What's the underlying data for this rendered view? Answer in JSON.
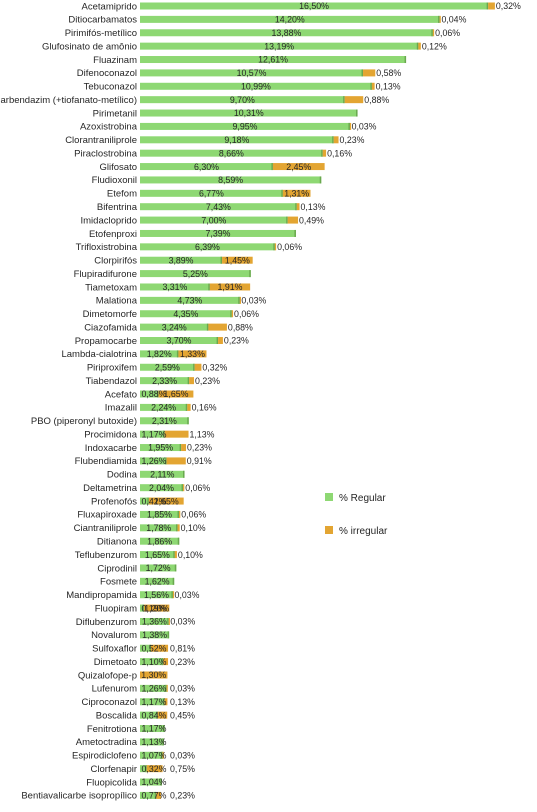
{
  "chart_data": {
    "type": "bar",
    "orientation": "horizontal",
    "stacked": true,
    "categories": [
      "Acetamiprido",
      "Ditiocarbamatos",
      "Pirimifós-metílico",
      "Glufosinato de amônio",
      "Fluazinam",
      "Difenoconazol",
      "Tebuconazol",
      "Carbendazim (+tiofanato-metílico)",
      "Pirimetanil",
      "Azoxistrobina",
      "Clorantraniliprole",
      "Piraclostrobina",
      "Glifosato",
      "Fludioxonil",
      "Etefom",
      "Bifentrina",
      "Imidacloprido",
      "Etofenproxi",
      "Trifloxistrobina",
      "Clorpirifós",
      "Flupiradifurone",
      "Tiametoxam",
      "Malationa",
      "Dimetomorfe",
      "Ciazofamida",
      "Propamocarbe",
      "Lambda-cialotrina",
      "Piriproxifem",
      "Tiabendazol",
      "Acefato",
      "Imazalil",
      "PBO (piperonyl butoxide)",
      "Procimidona",
      "Indoxacarbe",
      "Flubendiamida",
      "Dodina",
      "Deltametrina",
      "Profenofós",
      "Fluxapiroxade",
      "Ciantraniliprole",
      "Ditianona",
      "Teflubenzurom",
      "Ciprodinil",
      "Fosmete",
      "Mandipropamida",
      "Fluopiram",
      "Diflubenzurom",
      "Novalurom",
      "Sulfoxaflor",
      "Dimetoato",
      "Quizalofope-p",
      "Lufenurom",
      "Ciproconazol",
      "Boscalida",
      "Fenitrotiona",
      "Ametoctradina",
      "Espirodiclofeno",
      "Clorfenapir",
      "Fluopicolida",
      "Bentiavalicarbe isopropílico"
    ],
    "series": [
      {
        "name": "% Regular",
        "color": "#8ed873",
        "values": [
          16.5,
          14.2,
          13.88,
          13.19,
          12.61,
          10.57,
          10.99,
          9.7,
          10.31,
          9.95,
          9.18,
          8.66,
          6.3,
          8.59,
          6.77,
          7.43,
          7.0,
          7.39,
          6.39,
          3.89,
          5.25,
          3.31,
          4.73,
          4.35,
          3.24,
          3.7,
          1.82,
          2.59,
          2.33,
          0.88,
          2.24,
          2.31,
          1.17,
          1.95,
          1.26,
          2.11,
          2.04,
          0.42,
          1.85,
          1.78,
          1.86,
          1.65,
          1.72,
          1.62,
          1.56,
          0.19,
          1.36,
          1.38,
          0.52,
          1.1,
          0.0,
          1.26,
          1.17,
          0.84,
          1.17,
          1.13,
          1.07,
          0.32,
          1.04,
          0.77
        ],
        "labels": [
          "16,50%",
          "14,20%",
          "13,88%",
          "13,19%",
          "12,61%",
          "10,57%",
          "10,99%",
          "9,70%",
          "10,31%",
          "9,95%",
          "9,18%",
          "8,66%",
          "6,30%",
          "8,59%",
          "6,77%",
          "7,43%",
          "7,00%",
          "7,39%",
          "6,39%",
          "3,89%",
          "5,25%",
          "3,31%",
          "4,73%",
          "4,35%",
          "3,24%",
          "3,70%",
          "1,82%",
          "2,59%",
          "2,33%",
          "0,88%",
          "2,24%",
          "2,31%",
          "1,17%",
          "1,95%",
          "1,26%",
          "2,11%",
          "2,04%",
          "0,42%",
          "1,85%",
          "1,78%",
          "1,86%",
          "1,65%",
          "1,72%",
          "1,62%",
          "1,56%",
          "0,19%",
          "1,36%",
          "1,38%",
          "0,52%",
          "1,10%",
          "",
          "1,26%",
          "1,17%",
          "0,84%",
          "1,17%",
          "1,13%",
          "1,07%",
          "0,32%",
          "1,04%",
          "0,77%"
        ]
      },
      {
        "name": "% irregular",
        "color": "#e3a532",
        "values": [
          0.32,
          0.04,
          0.06,
          0.12,
          0,
          0.58,
          0.13,
          0.88,
          0,
          0.03,
          0.23,
          0.16,
          2.45,
          0,
          1.31,
          0.13,
          0.49,
          0,
          0.06,
          1.45,
          0,
          1.91,
          0.03,
          0.06,
          0.88,
          0.23,
          1.33,
          0.32,
          0.23,
          1.65,
          0.16,
          0,
          1.13,
          0.23,
          0.91,
          0,
          0.06,
          1.65,
          0.06,
          0.1,
          0,
          0.1,
          0,
          0,
          0.03,
          1.2,
          0.03,
          0,
          0.81,
          0.23,
          1.3,
          0.03,
          0.13,
          0.45,
          0,
          0,
          0.03,
          0.75,
          0,
          0.23
        ],
        "labels": [
          "0,32%",
          "0,04%",
          "0,06%",
          "0,12%",
          "",
          "0,58%",
          "0,13%",
          "0,88%",
          "",
          "0,03%",
          "0,23%",
          "0,16%",
          "2,45%",
          "",
          "1,31%",
          "0,13%",
          "0,49%",
          "",
          "0,06%",
          "1,45%",
          "",
          "1,91%",
          "0,03%",
          "0,06%",
          "0,88%",
          "0,23%",
          "1,33%",
          "0,32%",
          "0,23%",
          "1,65%",
          "0,16%",
          "",
          "1,13%",
          "0,23%",
          "0,91%",
          "",
          "0,06%",
          "1,65%",
          "0,06%",
          "0,10%",
          "",
          "0,10%",
          "",
          "",
          "0,03%",
          "1,20%",
          "0,03%",
          "",
          "0,81%",
          "0,23%",
          "1,30%",
          "0,03%",
          "0,13%",
          "0,45%",
          "",
          "",
          "0,03%",
          "0,75%",
          "",
          "0,23%"
        ]
      }
    ],
    "legend": {
      "position": "right",
      "entries": [
        "% Regular",
        "% irregular"
      ]
    },
    "grid": false,
    "xlim": [
      0,
      17.2
    ]
  }
}
